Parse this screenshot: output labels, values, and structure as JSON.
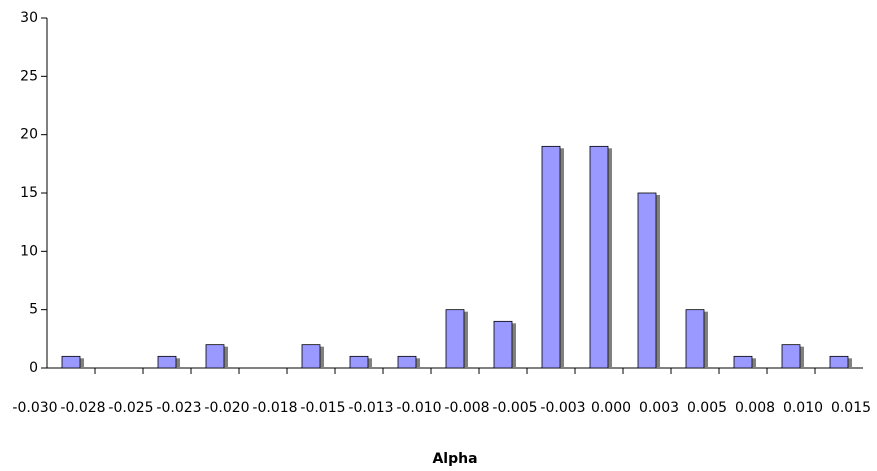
{
  "chart_data": {
    "type": "histogram",
    "x_label": "Alpha",
    "bins": [
      "-0.030",
      "-0.028",
      "-0.025",
      "-0.023",
      "-0.020",
      "-0.018",
      "-0.015",
      "-0.013",
      "-0.010",
      "-0.008",
      "-0.005",
      "-0.003",
      "0.000",
      "0.003",
      "0.005",
      "0.008",
      "0.010",
      "0.015"
    ],
    "values": [
      1,
      0,
      1,
      2,
      0,
      2,
      1,
      1,
      5,
      4,
      19,
      19,
      15,
      5,
      1,
      2,
      1
    ],
    "color": "#9999ff",
    "ylim": [
      0,
      30
    ],
    "yticks": [
      0,
      5,
      10,
      15,
      20,
      25,
      30
    ],
    "grid": false
  }
}
